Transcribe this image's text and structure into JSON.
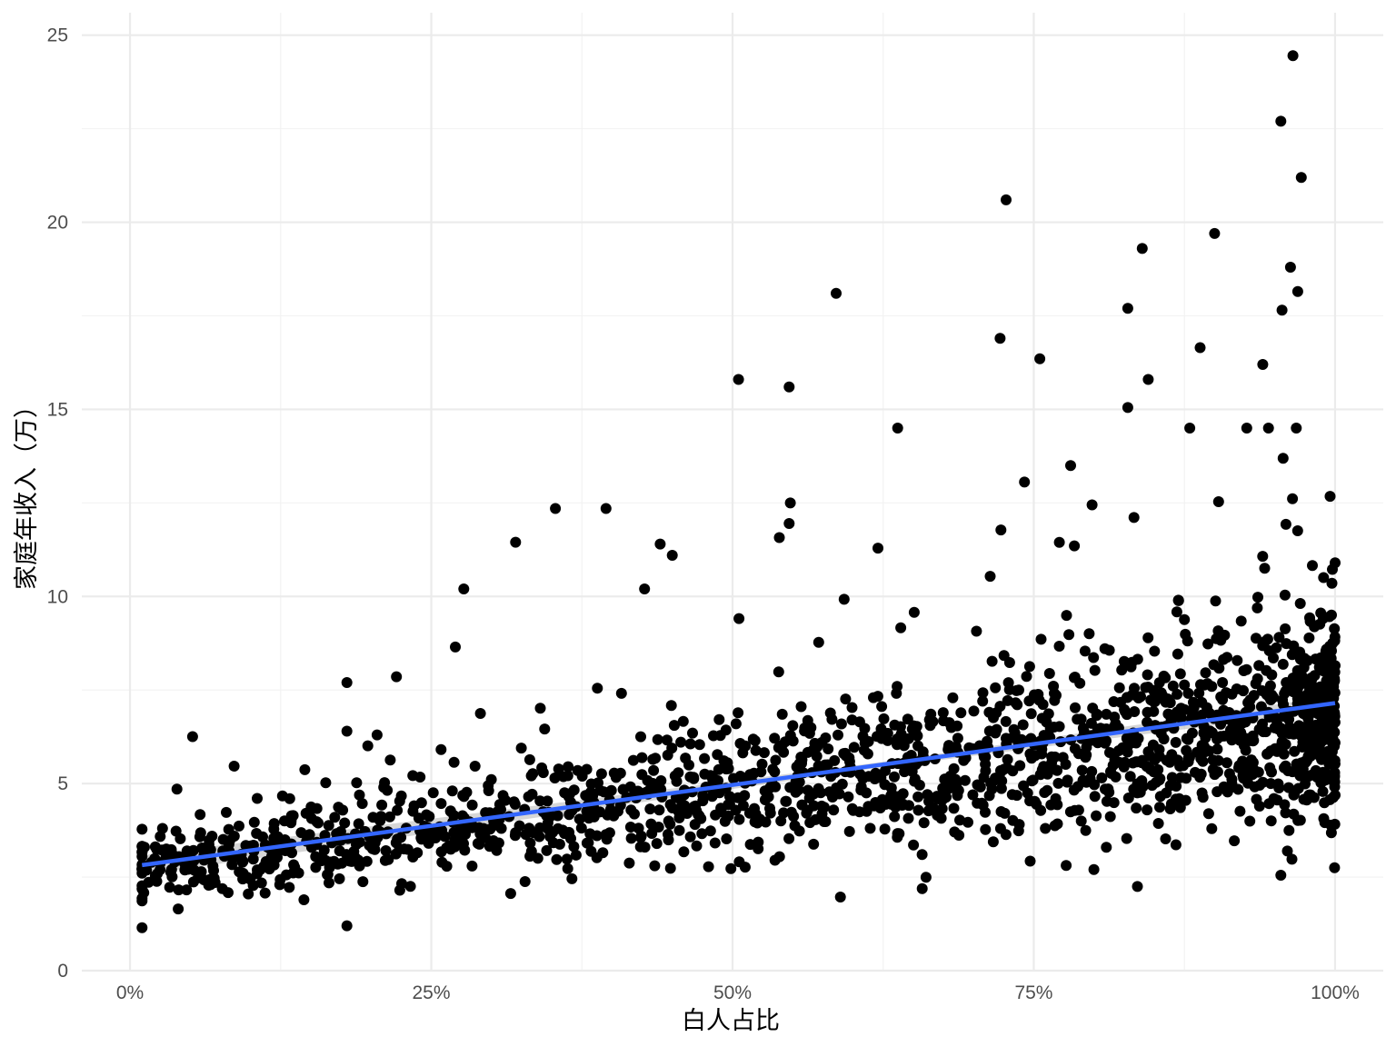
{
  "chart_data": {
    "type": "scatter",
    "title": "",
    "xlabel": "白人占比",
    "ylabel": "家庭年收入（万）",
    "xlim": [
      -0.04,
      1.04
    ],
    "ylim": [
      0,
      25.6
    ],
    "x_ticks": [
      0,
      0.25,
      0.5,
      0.75,
      1.0
    ],
    "x_tick_labels": [
      "0%",
      "25%",
      "50%",
      "75%",
      "100%"
    ],
    "y_ticks": [
      0,
      5,
      10,
      15,
      20,
      25
    ],
    "y_tick_labels": [
      "0",
      "5",
      "10",
      "15",
      "20",
      "25"
    ],
    "grid": true,
    "legend": "none",
    "point_color": "#000000",
    "point_count_approx": 1800,
    "points_note": "~1800 scatter points; dense cloud generated procedurally in script around the fitted trend. Representative explicit points below.",
    "points": [
      {
        "x": 0.01,
        "y": 1.15
      },
      {
        "x": 0.01,
        "y": 3.05
      },
      {
        "x": 0.012,
        "y": 3.3
      },
      {
        "x": 0.027,
        "y": 3.8
      },
      {
        "x": 0.039,
        "y": 4.85
      },
      {
        "x": 0.04,
        "y": 1.65
      },
      {
        "x": 0.18,
        "y": 7.7
      },
      {
        "x": 0.18,
        "y": 6.4
      },
      {
        "x": 0.18,
        "y": 1.2
      },
      {
        "x": 0.205,
        "y": 6.3
      },
      {
        "x": 0.27,
        "y": 8.65
      },
      {
        "x": 0.277,
        "y": 10.2
      },
      {
        "x": 0.32,
        "y": 11.45
      },
      {
        "x": 0.353,
        "y": 12.35
      },
      {
        "x": 0.395,
        "y": 12.35
      },
      {
        "x": 0.44,
        "y": 11.4
      },
      {
        "x": 0.45,
        "y": 11.1
      },
      {
        "x": 0.427,
        "y": 10.2
      },
      {
        "x": 0.505,
        "y": 15.8
      },
      {
        "x": 0.547,
        "y": 15.6
      },
      {
        "x": 0.548,
        "y": 12.5
      },
      {
        "x": 0.547,
        "y": 11.95
      },
      {
        "x": 0.586,
        "y": 18.1
      },
      {
        "x": 0.637,
        "y": 14.5
      },
      {
        "x": 0.722,
        "y": 16.9
      },
      {
        "x": 0.727,
        "y": 20.6
      },
      {
        "x": 0.755,
        "y": 16.35
      },
      {
        "x": 0.828,
        "y": 17.7
      },
      {
        "x": 0.84,
        "y": 19.3
      },
      {
        "x": 0.845,
        "y": 15.8
      },
      {
        "x": 0.828,
        "y": 15.05
      },
      {
        "x": 0.9,
        "y": 19.7
      },
      {
        "x": 0.94,
        "y": 16.2
      },
      {
        "x": 0.955,
        "y": 22.7
      },
      {
        "x": 0.965,
        "y": 24.45
      },
      {
        "x": 0.972,
        "y": 21.2
      },
      {
        "x": 0.963,
        "y": 18.8
      },
      {
        "x": 0.969,
        "y": 18.15
      },
      {
        "x": 0.956,
        "y": 17.65
      },
      {
        "x": 0.888,
        "y": 16.65
      },
      {
        "x": 1.0,
        "y": 10.9
      },
      {
        "x": 0.836,
        "y": 2.25
      },
      {
        "x": 0.955,
        "y": 2.55
      },
      {
        "x": 0.998,
        "y": 5.6
      }
    ],
    "trend_line": {
      "x": [
        0.01,
        1.0
      ],
      "y": [
        2.82,
        7.15
      ],
      "color": "#3366ff"
    },
    "confidence_band": {
      "color": "#999999",
      "opacity": 0.4
    }
  }
}
